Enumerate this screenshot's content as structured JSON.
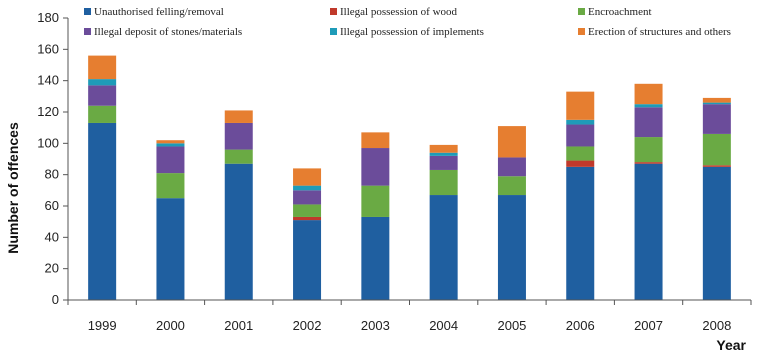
{
  "chart_data": {
    "type": "bar",
    "stacked": true,
    "title": "",
    "xlabel": "Year",
    "ylabel": "Number of offences",
    "ylim": [
      0,
      180
    ],
    "yticks": [
      0,
      20,
      40,
      60,
      80,
      100,
      120,
      140,
      160,
      180
    ],
    "grid": false,
    "legend_position": "top",
    "categories": [
      "1999",
      "2000",
      "2001",
      "2002",
      "2003",
      "2004",
      "2005",
      "2006",
      "2007",
      "2008"
    ],
    "series": [
      {
        "name": "Unauthorised felling/removal",
        "color": "#1f5fa0",
        "values": [
          113,
          65,
          87,
          51,
          53,
          67,
          67,
          85,
          87,
          85
        ]
      },
      {
        "name": "Illegal possession of wood",
        "color": "#c0392b",
        "values": [
          0,
          0,
          0,
          2,
          0,
          0,
          0,
          4,
          1,
          1
        ]
      },
      {
        "name": "Encroachment",
        "color": "#6aaa44",
        "values": [
          11,
          16,
          9,
          8,
          20,
          16,
          12,
          9,
          16,
          20
        ]
      },
      {
        "name": "Illegal deposit of stones/materials",
        "color": "#6b4c9a",
        "values": [
          13,
          17,
          17,
          9,
          24,
          9,
          12,
          14,
          19,
          19
        ]
      },
      {
        "name": "Illegal possession of implements",
        "color": "#1e9bb8",
        "values": [
          4,
          2,
          0,
          3,
          0,
          2,
          0,
          3,
          2,
          1
        ]
      },
      {
        "name": "Erection of structures and others",
        "color": "#e67e30",
        "values": [
          15,
          2,
          8,
          11,
          10,
          5,
          20,
          18,
          13,
          3
        ]
      }
    ]
  }
}
